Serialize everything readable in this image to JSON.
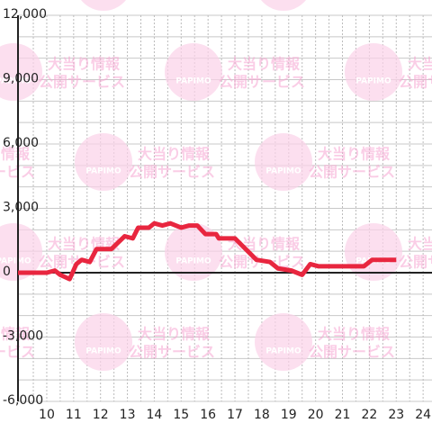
{
  "chart_data": {
    "type": "line",
    "x": [
      8.93,
      10.0,
      10.3,
      10.5,
      10.85,
      11.1,
      11.3,
      11.6,
      11.85,
      12.4,
      12.9,
      13.2,
      13.4,
      13.8,
      14.0,
      14.3,
      14.6,
      15.0,
      15.3,
      15.6,
      15.9,
      16.3,
      16.4,
      17.0,
      17.8,
      18.3,
      18.6,
      19.1,
      19.5,
      19.8,
      20.1,
      21.8,
      22.1,
      23.0
    ],
    "series": [
      {
        "color": "#e8263f",
        "values": [
          0,
          0,
          100,
          -100,
          -300,
          400,
          600,
          500,
          1100,
          1100,
          1700,
          1600,
          2100,
          2100,
          2300,
          2200,
          2300,
          2100,
          2200,
          2200,
          1800,
          1800,
          1600,
          1600,
          600,
          500,
          200,
          100,
          -100,
          400,
          300,
          300,
          600,
          600
        ]
      }
    ],
    "xlim": [
      8.93,
      24.33
    ],
    "xticks": [
      10,
      11,
      12,
      13,
      14,
      15,
      16,
      17,
      18,
      19,
      20,
      21,
      22,
      23,
      24
    ],
    "xminorticks": [
      9.5,
      10,
      10.5,
      11,
      11.5,
      12,
      12.5,
      13,
      13.5,
      14,
      14.5,
      15,
      15.5,
      16,
      16.5,
      17,
      17.5,
      18,
      18.5,
      19,
      19.5,
      20,
      20.5,
      21,
      21.5,
      22,
      22.5,
      23,
      23.5,
      24
    ],
    "ylim": [
      -6000,
      12000
    ],
    "yticks": [
      {
        "value": 12000,
        "label": "12,000"
      },
      {
        "value": 9000,
        "label": "9,000"
      },
      {
        "value": 6000,
        "label": "6,000"
      },
      {
        "value": 3000,
        "label": "3,000"
      },
      0,
      {
        "value": -3000,
        "label": "-3,000"
      },
      {
        "value": -6000,
        "label": "-6,000"
      }
    ],
    "yminorticks": [
      -5000,
      -4000,
      -2000,
      -1000,
      1000,
      2000,
      4000,
      5000,
      7000,
      8000,
      10000,
      11000
    ],
    "grid": true,
    "watermark": {
      "logo": "PAPIMO",
      "line1": "大当り情報",
      "line2": "公開サービス"
    }
  }
}
